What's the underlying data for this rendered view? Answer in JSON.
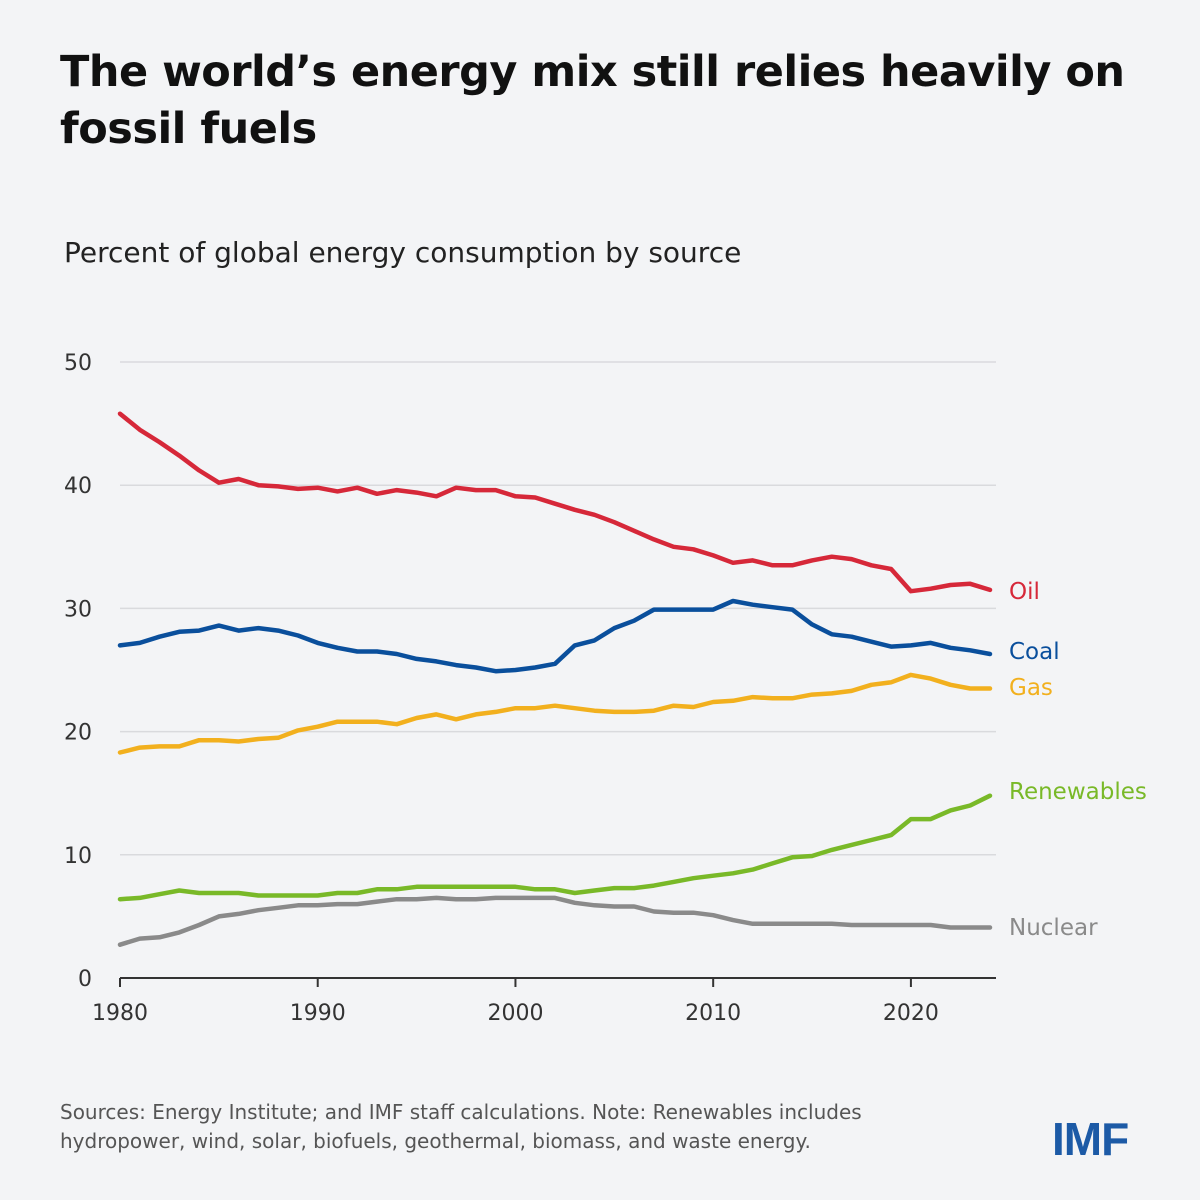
{
  "title": "The world’s energy mix still relies heavily on fossil fuels",
  "note": "Sources: Energy Institute; and IMF staff calculations. Note: Renewables includes hydropower, wind, solar, biofuels, geothermal, biomass, and waste energy.",
  "logo": "IMF",
  "chart_data": {
    "type": "line",
    "title": "The world’s energy mix still relies heavily on fossil fuels",
    "subtitle": "Percent of global energy consumption by source",
    "xlabel": "",
    "ylabel": "",
    "xlim": [
      1980,
      2024
    ],
    "ylim": [
      0,
      50
    ],
    "x_ticks": [
      "1980",
      "1990",
      "2000",
      "2010",
      "2020"
    ],
    "y_ticks": [
      "0",
      "10",
      "20",
      "30",
      "40",
      "50"
    ],
    "grid": "horizontal",
    "legend": "inline-right",
    "x": [
      1980,
      1981,
      1982,
      1983,
      1984,
      1985,
      1986,
      1987,
      1988,
      1989,
      1990,
      1991,
      1992,
      1993,
      1994,
      1995,
      1996,
      1997,
      1998,
      1999,
      2000,
      2001,
      2002,
      2003,
      2004,
      2005,
      2006,
      2007,
      2008,
      2009,
      2010,
      2011,
      2012,
      2013,
      2014,
      2015,
      2016,
      2017,
      2018,
      2019,
      2020,
      2021,
      2022,
      2023,
      2024
    ],
    "series": [
      {
        "name": "Oil",
        "color": "#d62839",
        "values": [
          45.8,
          44.5,
          43.5,
          42.4,
          41.2,
          40.2,
          40.5,
          40.0,
          39.9,
          39.7,
          39.8,
          39.5,
          39.8,
          39.3,
          39.6,
          39.4,
          39.1,
          39.8,
          39.6,
          39.6,
          39.1,
          39.0,
          38.5,
          38.0,
          37.6,
          37.0,
          36.3,
          35.6,
          35.0,
          34.8,
          34.3,
          33.7,
          33.9,
          33.5,
          33.5,
          33.9,
          34.2,
          34.0,
          33.5,
          33.2,
          31.4,
          31.6,
          31.9,
          32.0,
          31.5
        ]
      },
      {
        "name": "Coal",
        "color": "#0a4f9c",
        "values": [
          27.0,
          27.2,
          27.7,
          28.1,
          28.2,
          28.6,
          28.2,
          28.4,
          28.2,
          27.8,
          27.2,
          26.8,
          26.5,
          26.5,
          26.3,
          25.9,
          25.7,
          25.4,
          25.2,
          24.9,
          25.0,
          25.2,
          25.5,
          27.0,
          27.4,
          28.4,
          29.0,
          29.9,
          29.9,
          29.9,
          29.9,
          30.6,
          30.3,
          30.1,
          29.9,
          28.7,
          27.9,
          27.7,
          27.3,
          26.9,
          27.0,
          27.2,
          26.8,
          26.6,
          26.3
        ]
      },
      {
        "name": "Gas",
        "color": "#f2b01e",
        "values": [
          18.3,
          18.7,
          18.8,
          18.8,
          19.3,
          19.3,
          19.2,
          19.4,
          19.5,
          20.1,
          20.4,
          20.8,
          20.8,
          20.8,
          20.6,
          21.1,
          21.4,
          21.0,
          21.4,
          21.6,
          21.9,
          21.9,
          22.1,
          21.9,
          21.7,
          21.6,
          21.6,
          21.7,
          22.1,
          22.0,
          22.4,
          22.5,
          22.8,
          22.7,
          22.7,
          23.0,
          23.1,
          23.3,
          23.8,
          24.0,
          24.6,
          24.3,
          23.8,
          23.5,
          23.5
        ]
      },
      {
        "name": "Renewables",
        "color": "#79b928",
        "values": [
          6.4,
          6.5,
          6.8,
          7.1,
          6.9,
          6.9,
          6.9,
          6.7,
          6.7,
          6.7,
          6.7,
          6.9,
          6.9,
          7.2,
          7.2,
          7.4,
          7.4,
          7.4,
          7.4,
          7.4,
          7.4,
          7.2,
          7.2,
          6.9,
          7.1,
          7.3,
          7.3,
          7.5,
          7.8,
          8.1,
          8.3,
          8.5,
          8.8,
          9.3,
          9.8,
          9.9,
          10.4,
          10.8,
          11.2,
          11.6,
          12.9,
          12.9,
          13.6,
          14.0,
          14.8
        ]
      },
      {
        "name": "Nuclear",
        "color": "#8a8a8a",
        "values": [
          2.7,
          3.2,
          3.3,
          3.7,
          4.3,
          5.0,
          5.2,
          5.5,
          5.7,
          5.9,
          5.9,
          6.0,
          6.0,
          6.2,
          6.4,
          6.4,
          6.5,
          6.4,
          6.4,
          6.5,
          6.5,
          6.5,
          6.5,
          6.1,
          5.9,
          5.8,
          5.8,
          5.4,
          5.3,
          5.3,
          5.1,
          4.7,
          4.4,
          4.4,
          4.4,
          4.4,
          4.4,
          4.3,
          4.3,
          4.3,
          4.3,
          4.3,
          4.1,
          4.1,
          4.1
        ]
      }
    ]
  }
}
